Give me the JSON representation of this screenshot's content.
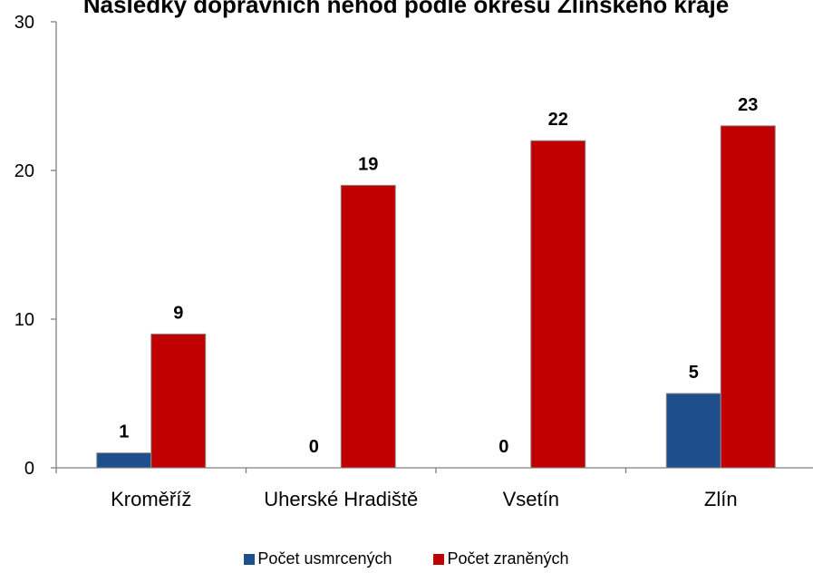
{
  "chart_data": {
    "type": "bar",
    "title": "Následky dopravních nehod podle okresů Zlínského kraje",
    "categories": [
      "Kroměříž",
      "Uherské Hradiště",
      "Vsetín",
      "Zlín"
    ],
    "series": [
      {
        "name": "Počet usmrcených",
        "values": [
          1,
          0,
          0,
          5
        ],
        "color": "#1f4e8c"
      },
      {
        "name": "Počet zraněných",
        "values": [
          9,
          19,
          22,
          23
        ],
        "color": "#c00000"
      }
    ],
    "ylim": [
      0,
      30
    ],
    "yticks": [
      0,
      10,
      20,
      30
    ],
    "data_labels": true,
    "grid": false,
    "legend_position": "bottom"
  }
}
